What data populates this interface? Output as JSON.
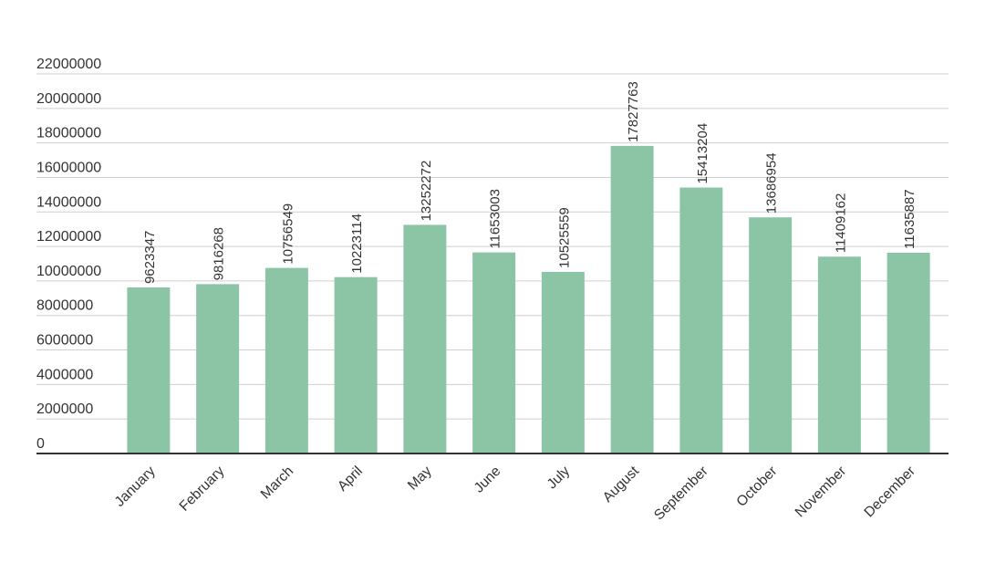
{
  "chart_data": {
    "type": "bar",
    "title": "",
    "xlabel": "",
    "ylabel": "",
    "categories": [
      "January",
      "February",
      "March",
      "April",
      "May",
      "June",
      "July",
      "August",
      "September",
      "October",
      "November",
      "December"
    ],
    "values": [
      9623347,
      9816268,
      10756549,
      10223114,
      13252272,
      11653003,
      10525559,
      17827763,
      15413204,
      13686954,
      11409162,
      11635887
    ],
    "ylim": [
      0,
      22000000
    ],
    "yticks": [
      0,
      2000000,
      4000000,
      6000000,
      8000000,
      10000000,
      12000000,
      14000000,
      16000000,
      18000000,
      20000000,
      22000000
    ],
    "grid": true,
    "legend": "none",
    "colors": {
      "bar": "#8cc4a6",
      "grid": "#cfcfcf",
      "baseline": "#333333",
      "text": "#333333"
    }
  }
}
